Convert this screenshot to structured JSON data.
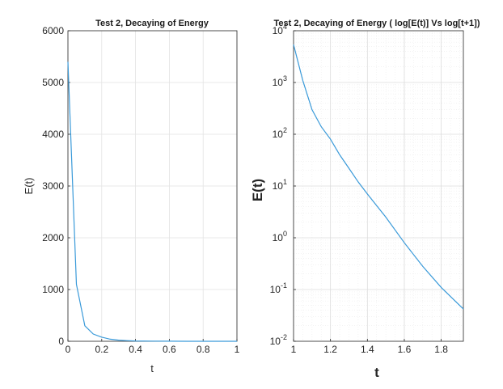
{
  "chart_data": [
    {
      "type": "line",
      "title": "Test 2, Decaying of Energy",
      "xlabel": "t",
      "ylabel": "E(t)",
      "xlim": [
        0,
        1
      ],
      "ylim": [
        0,
        6000
      ],
      "xscale": "linear",
      "yscale": "linear",
      "grid": true,
      "xticks": [
        0,
        0.2,
        0.4,
        0.6,
        0.8,
        1
      ],
      "xtick_labels": [
        "0",
        "0.2",
        "0.4",
        "0.6",
        "0.8",
        "1"
      ],
      "yticks": [
        0,
        1000,
        2000,
        3000,
        4000,
        5000,
        6000
      ],
      "ytick_labels": [
        "0",
        "1000",
        "2000",
        "3000",
        "4000",
        "5000",
        "6000"
      ],
      "line_color": "#3a9ad9",
      "series": [
        {
          "x": [
            0,
            0.05,
            0.1,
            0.15,
            0.2,
            0.25,
            0.3,
            0.35,
            0.4,
            0.5,
            0.6,
            0.7,
            0.8,
            0.9,
            1.0
          ],
          "y": [
            5400,
            1100,
            300,
            140,
            80,
            40,
            22,
            12,
            7,
            3,
            1.2,
            0.5,
            0.2,
            0.08,
            0.05
          ]
        }
      ]
    },
    {
      "type": "line",
      "title": "Test 2, Decaying of Energy ( log[E(t)] Vs log[t+1])",
      "xlabel": "t",
      "ylabel": "E(t)",
      "xlim": [
        1,
        1.92
      ],
      "ylim": [
        0.01,
        10000
      ],
      "xscale": "linear",
      "yscale": "log",
      "grid": true,
      "minor_grid": true,
      "xticks": [
        1,
        1.2,
        1.4,
        1.6,
        1.8
      ],
      "xtick_labels": [
        "1",
        "1.2",
        "1.4",
        "1.6",
        "1.8"
      ],
      "yticks": [
        0.01,
        0.1,
        1,
        10,
        100,
        1000,
        10000
      ],
      "ytick_bases": [
        "10",
        "10",
        "10",
        "10",
        "10",
        "10",
        "10"
      ],
      "ytick_exponents": [
        "-2",
        "-1",
        "0",
        "1",
        "2",
        "3",
        "4"
      ],
      "line_color": "#3a9ad9",
      "series": [
        {
          "x": [
            1.0,
            1.05,
            1.1,
            1.15,
            1.2,
            1.25,
            1.3,
            1.35,
            1.4,
            1.5,
            1.6,
            1.7,
            1.8,
            1.92
          ],
          "y": [
            5400,
            1100,
            300,
            140,
            80,
            40,
            22,
            12,
            7,
            2.5,
            0.8,
            0.28,
            0.11,
            0.042
          ]
        }
      ]
    }
  ]
}
